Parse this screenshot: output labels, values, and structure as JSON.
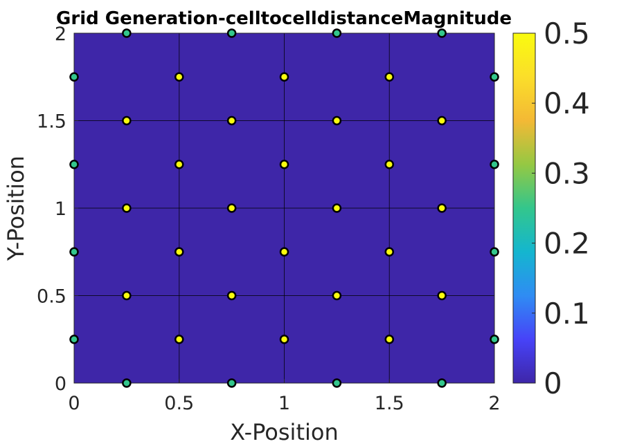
{
  "chart_data": {
    "type": "scatter",
    "title": "Grid Generation-celltocelldistanceMagnitude",
    "xlabel": "X-Position",
    "ylabel": "Y-Position",
    "xlim": [
      0,
      2
    ],
    "ylim": [
      0,
      2
    ],
    "xticks": [
      0,
      0.5,
      1,
      1.5,
      2
    ],
    "yticks": [
      0,
      0.5,
      1,
      1.5,
      2
    ],
    "xtick_labels": [
      "0",
      "0.5",
      "1",
      "1.5",
      "2"
    ],
    "ytick_labels": [
      "0",
      "0.5",
      "1",
      "1.5",
      "2"
    ],
    "grid": true,
    "background_value": 0,
    "colorbar": {
      "range": [
        0,
        0.5
      ],
      "ticks": [
        0,
        0.1,
        0.2,
        0.3,
        0.4,
        0.5
      ],
      "tick_labels": [
        "0",
        "0.1",
        "0.2",
        "0.3",
        "0.4",
        "0.5"
      ],
      "colormap": "parula",
      "colors": [
        "#3e26a8",
        "#4743f8",
        "#2f8cf3",
        "#14b6cf",
        "#33c68c",
        "#95c843",
        "#f3b935",
        "#fbde2a",
        "#f9fb0e"
      ]
    },
    "points": [
      {
        "x": 0.25,
        "y": 0,
        "v": 0.25
      },
      {
        "x": 0.75,
        "y": 0,
        "v": 0.25
      },
      {
        "x": 1.25,
        "y": 0,
        "v": 0.25
      },
      {
        "x": 1.75,
        "y": 0,
        "v": 0.25
      },
      {
        "x": 0,
        "y": 0.25,
        "v": 0.25
      },
      {
        "x": 0.5,
        "y": 0.25,
        "v": 0.5
      },
      {
        "x": 1,
        "y": 0.25,
        "v": 0.5
      },
      {
        "x": 1.5,
        "y": 0.25,
        "v": 0.5
      },
      {
        "x": 2,
        "y": 0.25,
        "v": 0.25
      },
      {
        "x": 0.25,
        "y": 0.5,
        "v": 0.5
      },
      {
        "x": 0.75,
        "y": 0.5,
        "v": 0.5
      },
      {
        "x": 1.25,
        "y": 0.5,
        "v": 0.5
      },
      {
        "x": 1.75,
        "y": 0.5,
        "v": 0.5
      },
      {
        "x": 0,
        "y": 0.75,
        "v": 0.25
      },
      {
        "x": 0.5,
        "y": 0.75,
        "v": 0.5
      },
      {
        "x": 1,
        "y": 0.75,
        "v": 0.5
      },
      {
        "x": 1.5,
        "y": 0.75,
        "v": 0.5
      },
      {
        "x": 2,
        "y": 0.75,
        "v": 0.25
      },
      {
        "x": 0.25,
        "y": 1,
        "v": 0.5
      },
      {
        "x": 0.75,
        "y": 1,
        "v": 0.5
      },
      {
        "x": 1.25,
        "y": 1,
        "v": 0.5
      },
      {
        "x": 1.75,
        "y": 1,
        "v": 0.5
      },
      {
        "x": 0,
        "y": 1.25,
        "v": 0.25
      },
      {
        "x": 0.5,
        "y": 1.25,
        "v": 0.5
      },
      {
        "x": 1,
        "y": 1.25,
        "v": 0.5
      },
      {
        "x": 1.5,
        "y": 1.25,
        "v": 0.5
      },
      {
        "x": 2,
        "y": 1.25,
        "v": 0.25
      },
      {
        "x": 0.25,
        "y": 1.5,
        "v": 0.5
      },
      {
        "x": 0.75,
        "y": 1.5,
        "v": 0.5
      },
      {
        "x": 1.25,
        "y": 1.5,
        "v": 0.5
      },
      {
        "x": 1.75,
        "y": 1.5,
        "v": 0.5
      },
      {
        "x": 0,
        "y": 1.75,
        "v": 0.25
      },
      {
        "x": 0.5,
        "y": 1.75,
        "v": 0.5
      },
      {
        "x": 1,
        "y": 1.75,
        "v": 0.5
      },
      {
        "x": 1.5,
        "y": 1.75,
        "v": 0.5
      },
      {
        "x": 2,
        "y": 1.75,
        "v": 0.25
      },
      {
        "x": 0.25,
        "y": 2,
        "v": 0.25
      },
      {
        "x": 0.75,
        "y": 2,
        "v": 0.25
      },
      {
        "x": 1.25,
        "y": 2,
        "v": 0.25
      },
      {
        "x": 1.75,
        "y": 2,
        "v": 0.25
      }
    ]
  }
}
